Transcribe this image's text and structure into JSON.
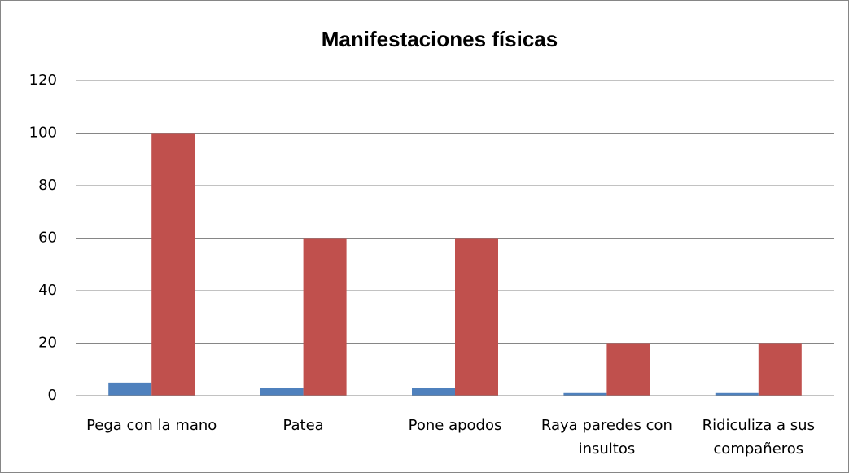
{
  "chart_data": {
    "type": "bar",
    "title": "Manifestaciones físicas",
    "categories": [
      "Pega con la mano",
      "Patea",
      "Pone apodos",
      "Raya paredes con insultos",
      "Ridiculiza a sus compañeros"
    ],
    "series": [
      {
        "color": "#4f81bd",
        "values": [
          5,
          3,
          3,
          1,
          1
        ]
      },
      {
        "color": "#c0504d",
        "values": [
          100,
          60,
          60,
          20,
          20
        ]
      }
    ],
    "ylim": [
      0,
      120
    ],
    "yticks": [
      0,
      20,
      40,
      60,
      80,
      100,
      120
    ],
    "grid": true
  }
}
